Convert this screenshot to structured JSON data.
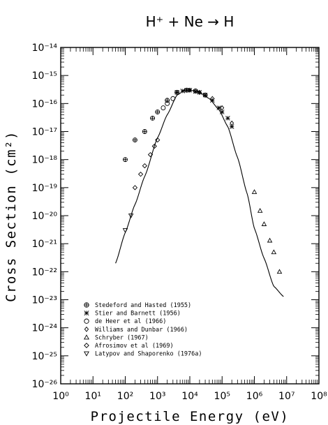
{
  "chart_data": {
    "type": "scatter",
    "title": "H⁺ + Ne → H",
    "xlabel": "Projectile Energy (eV)",
    "ylabel": "Cross Section (cm²)",
    "xscale": "log",
    "yscale": "log",
    "xlim": [
      1,
      100000000
    ],
    "ylim": [
      1e-26,
      1e-14
    ],
    "x_tick_labels": [
      "10⁰",
      "10¹",
      "10²",
      "10³",
      "10⁴",
      "10⁵",
      "10⁶",
      "10⁷",
      "10⁸"
    ],
    "y_tick_labels": [
      "10⁻²⁶",
      "10⁻²⁵",
      "10⁻²⁴",
      "10⁻²³",
      "10⁻²²",
      "10⁻²¹",
      "10⁻²⁰",
      "10⁻¹⁹",
      "10⁻¹⁸",
      "10⁻¹⁷",
      "10⁻¹⁶",
      "10⁻¹⁵",
      "10⁻¹⁴"
    ],
    "legend_position": "bottom-left",
    "fit_curve": {
      "x": [
        50,
        100,
        200,
        400,
        1000,
        2000,
        4000,
        7000,
        10000,
        15000,
        20000,
        40000,
        80000,
        150000,
        300000,
        600000,
        1000000,
        2000000,
        4000000,
        8000000
      ],
      "y": [
        2e-22,
        2.5e-21,
        2.5e-20,
        2.5e-19,
        6e-18,
        4e-17,
        2e-16,
        3e-16,
        3e-16,
        2.8e-16,
        2.5e-16,
        1.5e-16,
        6e-17,
        1.5e-17,
        1.2e-18,
        6e-20,
        3.5e-21,
        3e-22,
        3e-23,
        1.3e-23
      ]
    },
    "series": [
      {
        "name": "Stedeford and Hasted (1955)",
        "marker": "circle-plus",
        "x": [
          100,
          200,
          400,
          700,
          1000,
          2000,
          4000,
          8000,
          15000,
          30000
        ],
        "y": [
          1e-18,
          5e-18,
          1e-17,
          3e-17,
          5e-17,
          1.3e-16,
          2.5e-16,
          3e-16,
          2.8e-16,
          2e-16
        ]
      },
      {
        "name": "Stier and Barnett (1956)",
        "marker": "asterisk",
        "x": [
          4000,
          6000,
          8000,
          10000,
          15000,
          20000,
          30000,
          50000,
          80000,
          100000,
          150000,
          200000
        ],
        "y": [
          2.5e-16,
          2.8e-16,
          3e-16,
          3e-16,
          2.7e-16,
          2.5e-16,
          2e-16,
          1.3e-16,
          7e-17,
          5e-17,
          3e-17,
          1.5e-17
        ]
      },
      {
        "name": "de Heer et al (1966)",
        "marker": "circle",
        "x": [
          1500,
          2000,
          3000
        ],
        "y": [
          7e-17,
          1e-16,
          1.5e-16
        ]
      },
      {
        "name": "Williams and Dunbar (1966)",
        "marker": "diamond-small",
        "x": [
          10000,
          20000,
          50000,
          100000,
          200000
        ],
        "y": [
          3e-16,
          2.5e-16,
          1.5e-16,
          7e-17,
          2e-17
        ]
      },
      {
        "name": "Schryber (1967)",
        "marker": "triangle-up",
        "x": [
          1000000,
          1500000,
          2000000,
          3000000,
          4000000,
          6000000
        ],
        "y": [
          7e-20,
          1.5e-20,
          5e-21,
          1.3e-21,
          5e-22,
          1e-22
        ]
      },
      {
        "name": "Afrosimov et al (1969)",
        "marker": "diamond",
        "x": [
          200,
          300,
          400,
          600,
          800,
          1000
        ],
        "y": [
          1e-19,
          3e-19,
          6e-19,
          1.5e-18,
          3e-18,
          5e-18
        ]
      },
      {
        "name": "Latypov and Shaporenko (1976a)",
        "marker": "triangle-down",
        "x": [
          100,
          150
        ],
        "y": [
          3e-21,
          1e-20
        ]
      }
    ]
  }
}
